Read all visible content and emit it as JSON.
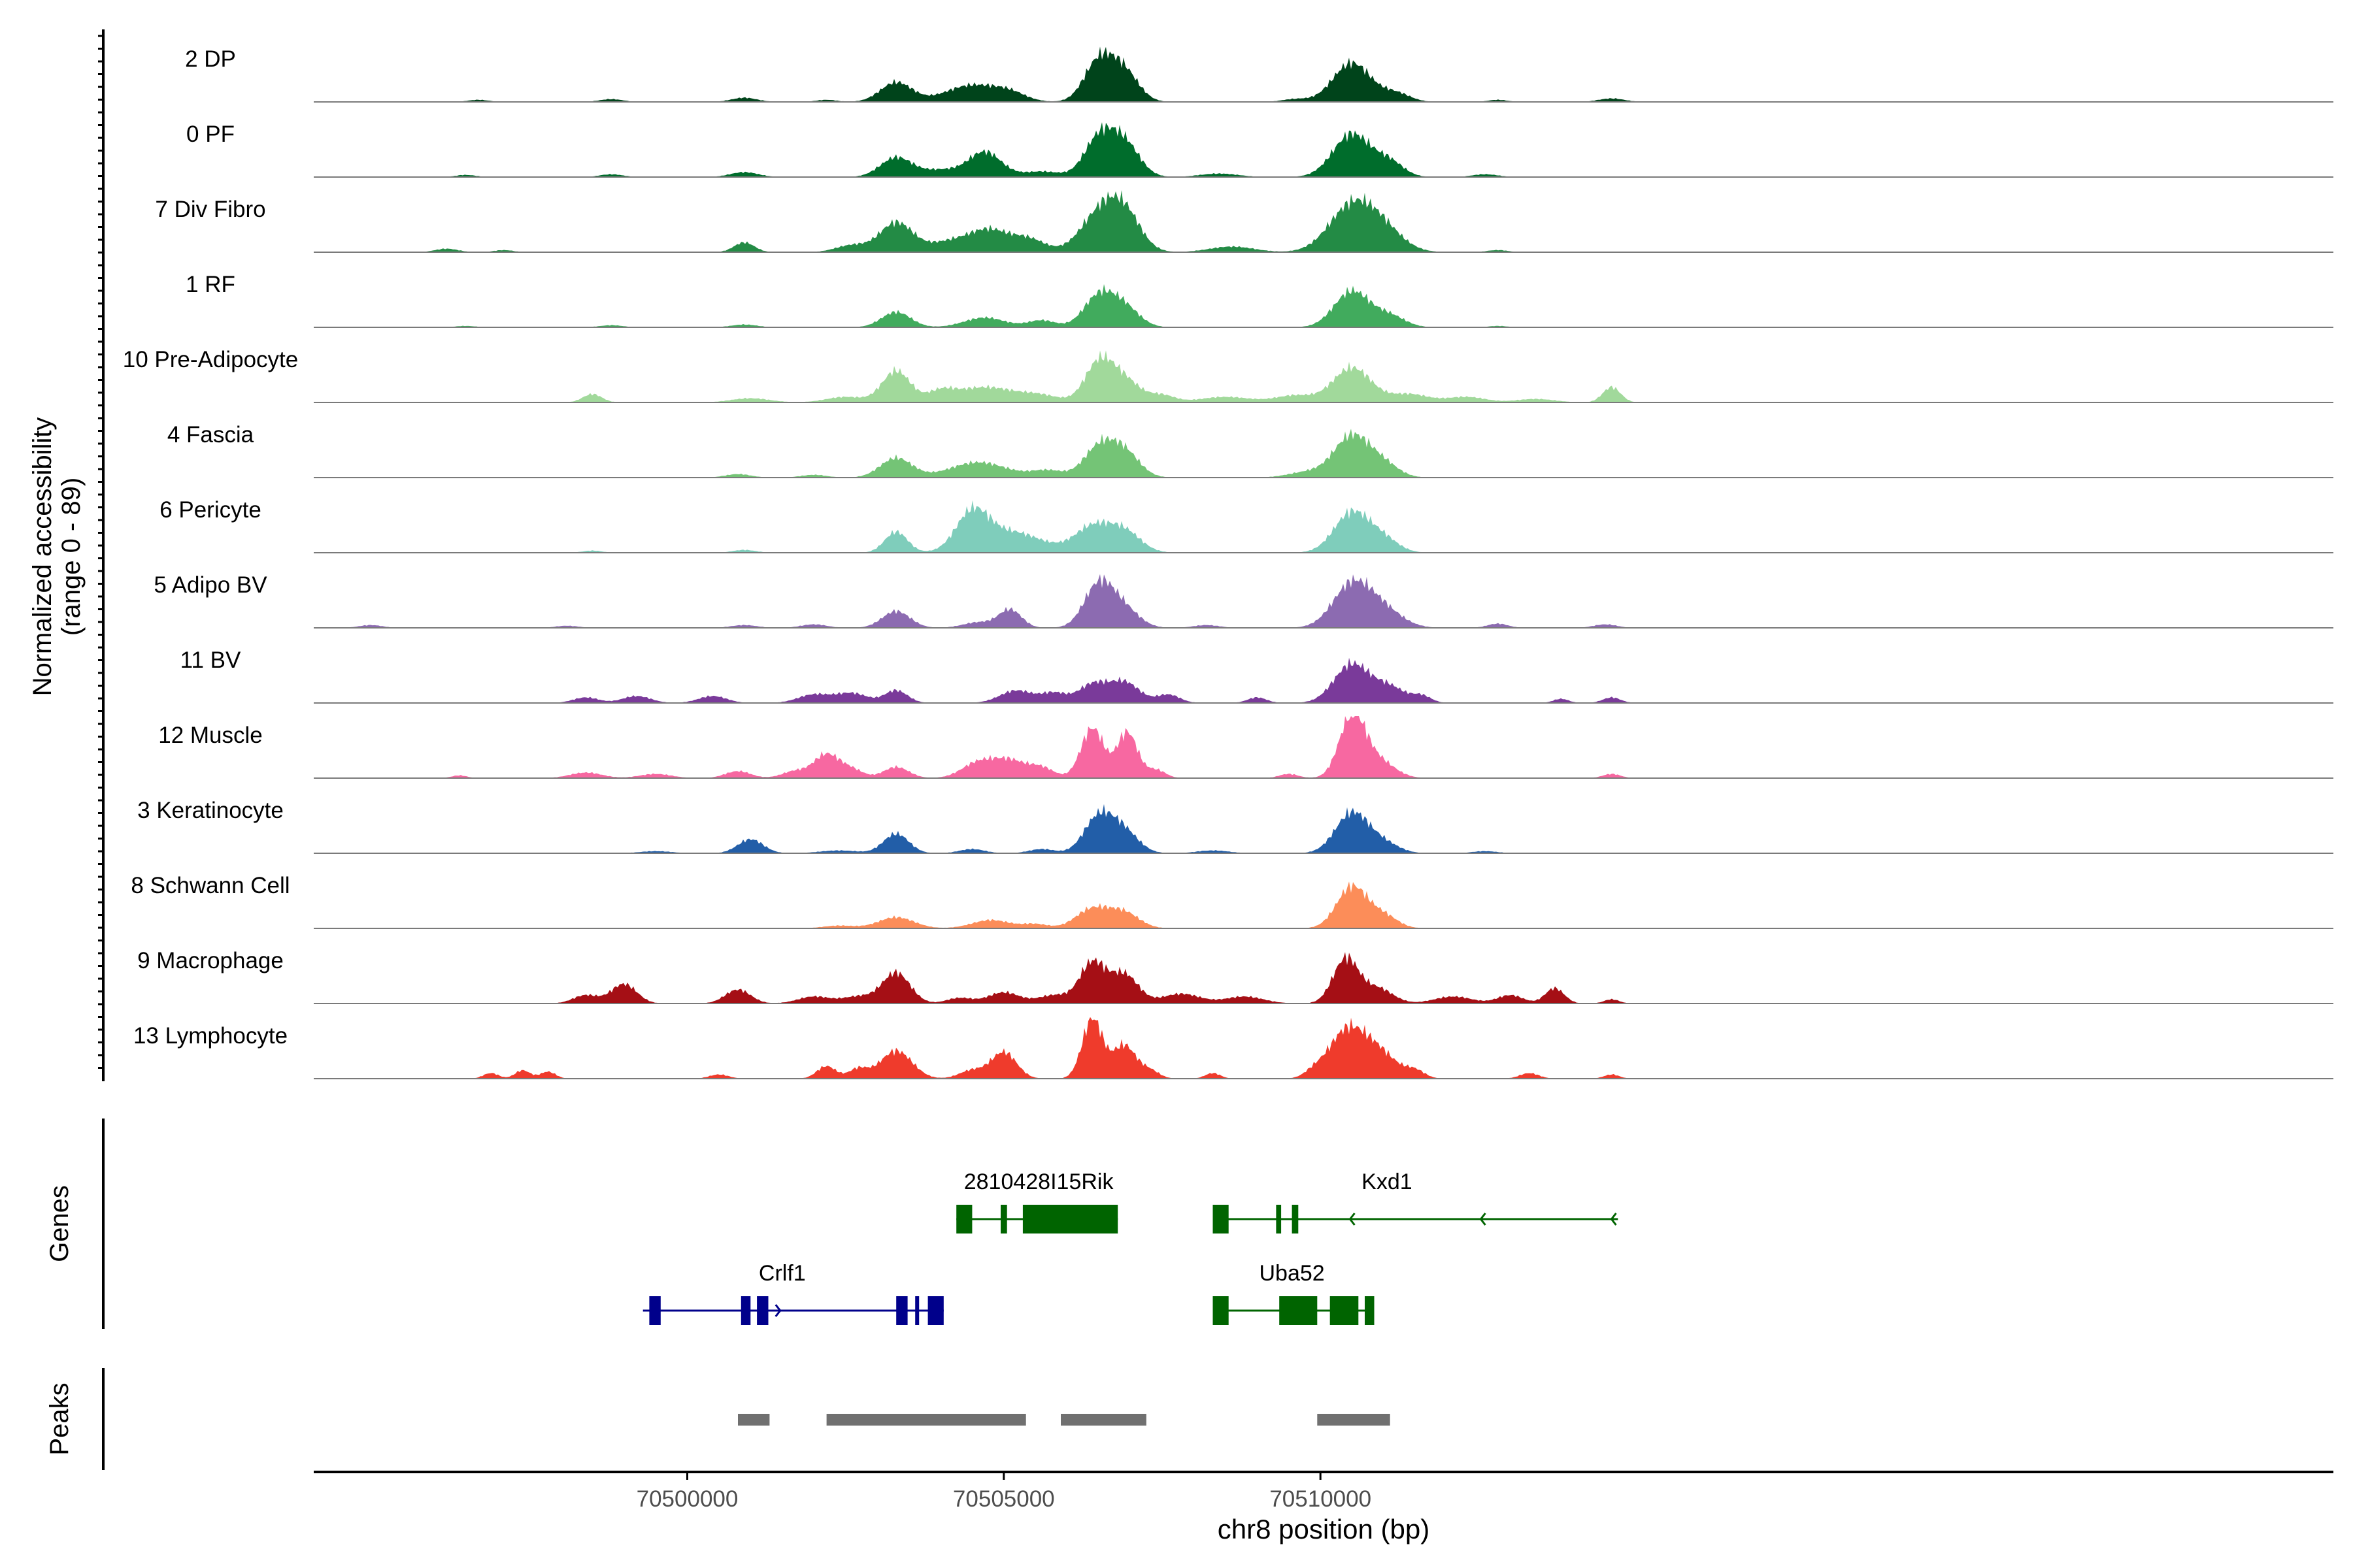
{
  "chart_data": {
    "type": "area",
    "title": "",
    "xlabel": "chr8 position (bp)",
    "ylabel": "Normalized accessibility\n(range 0 - 89)",
    "yaxis_range": [
      0,
      89
    ],
    "xlim": [
      70494100,
      70526000
    ],
    "x_ticks": [
      70500000,
      70505000,
      70510000
    ],
    "x_tick_labels": [
      "70500000",
      "70505000",
      "70510000"
    ],
    "track_labels": {
      "genes": "Genes",
      "peaks": "Peaks"
    },
    "series": [
      {
        "name": "2 DP",
        "color": "#00441b",
        "peaks": [
          [
            70496700,
            3,
            160
          ],
          [
            70498800,
            4,
            180
          ],
          [
            70500900,
            6,
            200
          ],
          [
            70502200,
            3,
            160
          ],
          [
            70503300,
            28,
            250
          ],
          [
            70504500,
            24,
            420
          ],
          [
            70505100,
            10,
            250
          ],
          [
            70506500,
            58,
            230
          ],
          [
            70506900,
            42,
            230
          ],
          [
            70509600,
            4,
            200
          ],
          [
            70510500,
            56,
            300
          ],
          [
            70511200,
            12,
            220
          ],
          [
            70512800,
            3,
            150
          ],
          [
            70514600,
            5,
            200
          ]
        ]
      },
      {
        "name": "0 PF",
        "color": "#006d2c",
        "peaks": [
          [
            70496500,
            3,
            160
          ],
          [
            70498800,
            4,
            180
          ],
          [
            70500900,
            7,
            220
          ],
          [
            70503300,
            28,
            250
          ],
          [
            70504000,
            10,
            300
          ],
          [
            70504700,
            36,
            260
          ],
          [
            70505600,
            8,
            300
          ],
          [
            70506500,
            54,
            230
          ],
          [
            70506900,
            48,
            240
          ],
          [
            70508400,
            5,
            300
          ],
          [
            70510500,
            62,
            300
          ],
          [
            70511100,
            20,
            220
          ],
          [
            70512600,
            4,
            200
          ]
        ]
      },
      {
        "name": "7 Div Fibro",
        "color": "#238b45",
        "peaks": [
          [
            70496200,
            5,
            180
          ],
          [
            70497100,
            3,
            150
          ],
          [
            70500900,
            14,
            160
          ],
          [
            70502600,
            10,
            250
          ],
          [
            70503300,
            42,
            260
          ],
          [
            70504200,
            16,
            380
          ],
          [
            70504800,
            28,
            300
          ],
          [
            70505400,
            18,
            260
          ],
          [
            70506500,
            52,
            300
          ],
          [
            70506900,
            52,
            260
          ],
          [
            70508600,
            8,
            350
          ],
          [
            70510500,
            66,
            360
          ],
          [
            70511000,
            26,
            320
          ],
          [
            70512800,
            3,
            160
          ]
        ]
      },
      {
        "name": "1 RF",
        "color": "#41ab5d",
        "peaks": [
          [
            70496500,
            2,
            160
          ],
          [
            70498800,
            3,
            180
          ],
          [
            70500900,
            4,
            200
          ],
          [
            70503300,
            22,
            230
          ],
          [
            70504700,
            14,
            320
          ],
          [
            70505600,
            10,
            220
          ],
          [
            70506500,
            44,
            240
          ],
          [
            70506900,
            28,
            240
          ],
          [
            70510500,
            52,
            280
          ],
          [
            70511100,
            16,
            240
          ],
          [
            70512800,
            2,
            150
          ]
        ]
      },
      {
        "name": "10 Pre-Adipocyte",
        "color": "#a1d99b",
        "peaks": [
          [
            70498500,
            12,
            150
          ],
          [
            70501000,
            6,
            300
          ],
          [
            70502500,
            8,
            300
          ],
          [
            70503300,
            45,
            220
          ],
          [
            70504000,
            12,
            200
          ],
          [
            70504700,
            22,
            500
          ],
          [
            70505600,
            8,
            300
          ],
          [
            70506500,
            55,
            220
          ],
          [
            70506900,
            32,
            250
          ],
          [
            70507500,
            10,
            200
          ],
          [
            70508500,
            8,
            400
          ],
          [
            70509600,
            10,
            300
          ],
          [
            70510500,
            50,
            300
          ],
          [
            70511400,
            12,
            300
          ],
          [
            70512300,
            8,
            300
          ],
          [
            70513400,
            5,
            300
          ],
          [
            70514600,
            22,
            140
          ]
        ]
      },
      {
        "name": "4 Fascia",
        "color": "#74c476",
        "peaks": [
          [
            70500800,
            5,
            200
          ],
          [
            70502000,
            4,
            200
          ],
          [
            70503300,
            28,
            250
          ],
          [
            70504600,
            22,
            450
          ],
          [
            70505700,
            10,
            260
          ],
          [
            70506500,
            42,
            240
          ],
          [
            70506900,
            36,
            240
          ],
          [
            70509800,
            8,
            300
          ],
          [
            70510500,
            60,
            280
          ],
          [
            70511000,
            18,
            240
          ]
        ]
      },
      {
        "name": "6 Pericyte",
        "color": "#7fcdbb",
        "peaks": [
          [
            70498500,
            3,
            150
          ],
          [
            70500900,
            4,
            180
          ],
          [
            70503300,
            30,
            180
          ],
          [
            70504500,
            50,
            250
          ],
          [
            70505100,
            30,
            500
          ],
          [
            70506400,
            36,
            280
          ],
          [
            70506900,
            30,
            260
          ],
          [
            70510500,
            58,
            280
          ],
          [
            70511000,
            18,
            240
          ]
        ]
      },
      {
        "name": "5 Adipo BV",
        "color": "#8c6bb1",
        "peaks": [
          [
            70495000,
            4,
            180
          ],
          [
            70498100,
            3,
            180
          ],
          [
            70500900,
            4,
            200
          ],
          [
            70502000,
            5,
            200
          ],
          [
            70503300,
            24,
            220
          ],
          [
            70504600,
            8,
            240
          ],
          [
            70505100,
            26,
            180
          ],
          [
            70506500,
            62,
            230
          ],
          [
            70506900,
            26,
            240
          ],
          [
            70508200,
            4,
            200
          ],
          [
            70510500,
            62,
            300
          ],
          [
            70511000,
            24,
            300
          ],
          [
            70512800,
            6,
            160
          ],
          [
            70514500,
            5,
            180
          ]
        ]
      },
      {
        "name": "11 BV",
        "color": "#7a3a9a",
        "peaks": [
          [
            70498400,
            8,
            200
          ],
          [
            70499200,
            10,
            220
          ],
          [
            70500400,
            10,
            220
          ],
          [
            70502000,
            12,
            250
          ],
          [
            70502600,
            14,
            250
          ],
          [
            70503300,
            18,
            180
          ],
          [
            70505200,
            18,
            260
          ],
          [
            70505800,
            14,
            200
          ],
          [
            70506400,
            26,
            220
          ],
          [
            70506900,
            30,
            240
          ],
          [
            70507600,
            12,
            180
          ],
          [
            70509000,
            8,
            150
          ],
          [
            70510500,
            56,
            280
          ],
          [
            70511100,
            22,
            240
          ],
          [
            70511600,
            10,
            150
          ],
          [
            70513800,
            6,
            120
          ],
          [
            70514600,
            8,
            140
          ]
        ]
      },
      {
        "name": "12 Muscle",
        "color": "#f768a1",
        "peaks": [
          [
            70496400,
            4,
            120
          ],
          [
            70498400,
            8,
            250
          ],
          [
            70499500,
            6,
            250
          ],
          [
            70500800,
            10,
            200
          ],
          [
            70501700,
            10,
            200
          ],
          [
            70502200,
            34,
            200
          ],
          [
            70502600,
            12,
            180
          ],
          [
            70503300,
            16,
            200
          ],
          [
            70504600,
            22,
            260
          ],
          [
            70505100,
            24,
            260
          ],
          [
            70505600,
            14,
            200
          ],
          [
            70506400,
            72,
            180
          ],
          [
            70506950,
            66,
            160
          ],
          [
            70507400,
            12,
            150
          ],
          [
            70509500,
            6,
            150
          ],
          [
            70510500,
            88,
            200
          ],
          [
            70510900,
            26,
            260
          ],
          [
            70514600,
            6,
            140
          ]
        ]
      },
      {
        "name": "3 Keratinocyte",
        "color": "#225ea8",
        "peaks": [
          [
            70499500,
            3,
            250
          ],
          [
            70501000,
            20,
            200
          ],
          [
            70502400,
            4,
            300
          ],
          [
            70503300,
            28,
            200
          ],
          [
            70504500,
            6,
            200
          ],
          [
            70505600,
            6,
            200
          ],
          [
            70506500,
            52,
            230
          ],
          [
            70506900,
            30,
            230
          ],
          [
            70508300,
            4,
            250
          ],
          [
            70510500,
            58,
            260
          ],
          [
            70511000,
            14,
            240
          ],
          [
            70512600,
            3,
            200
          ]
        ]
      },
      {
        "name": "8 Schwann Cell",
        "color": "#fc8d59",
        "peaks": [
          [
            70502400,
            4,
            250
          ],
          [
            70503300,
            16,
            280
          ],
          [
            70504800,
            12,
            300
          ],
          [
            70505500,
            6,
            200
          ],
          [
            70506400,
            28,
            260
          ],
          [
            70506900,
            22,
            240
          ],
          [
            70510500,
            60,
            240
          ],
          [
            70511000,
            18,
            220
          ]
        ]
      },
      {
        "name": "9 Macrophage",
        "color": "#a50f15",
        "peaks": [
          [
            70498400,
            12,
            200
          ],
          [
            70499000,
            28,
            200
          ],
          [
            70500800,
            20,
            200
          ],
          [
            70502000,
            10,
            250
          ],
          [
            70502700,
            10,
            250
          ],
          [
            70503300,
            44,
            220
          ],
          [
            70504300,
            8,
            200
          ],
          [
            70505000,
            16,
            250
          ],
          [
            70505800,
            12,
            250
          ],
          [
            70506400,
            58,
            200
          ],
          [
            70506900,
            42,
            220
          ],
          [
            70507800,
            14,
            300
          ],
          [
            70508800,
            10,
            300
          ],
          [
            70510400,
            64,
            200
          ],
          [
            70510900,
            22,
            240
          ],
          [
            70512100,
            10,
            300
          ],
          [
            70513000,
            12,
            200
          ],
          [
            70513700,
            22,
            150
          ],
          [
            70514600,
            6,
            120
          ]
        ]
      },
      {
        "name": "13 Lymphocyte",
        "color": "#ef3b2c",
        "peaks": [
          [
            70496900,
            8,
            120
          ],
          [
            70497400,
            12,
            120
          ],
          [
            70497800,
            10,
            120
          ],
          [
            70500500,
            6,
            150
          ],
          [
            70502200,
            18,
            150
          ],
          [
            70502700,
            14,
            150
          ],
          [
            70503300,
            40,
            250
          ],
          [
            70504500,
            12,
            200
          ],
          [
            70505000,
            38,
            200
          ],
          [
            70506400,
            86,
            160
          ],
          [
            70506900,
            48,
            180
          ],
          [
            70507300,
            12,
            150
          ],
          [
            70508300,
            8,
            120
          ],
          [
            70509900,
            8,
            150
          ],
          [
            70510400,
            64,
            280
          ],
          [
            70510900,
            38,
            300
          ],
          [
            70511500,
            10,
            150
          ],
          [
            70513300,
            8,
            150
          ],
          [
            70514600,
            6,
            120
          ]
        ]
      }
    ],
    "genes": [
      {
        "name": "2810428I15Rik",
        "color": "#006400",
        "strand": "",
        "row": 1,
        "start": 70504250,
        "end": 70506800,
        "label_pos": 70505550,
        "exons": [
          [
            70504250,
            70504500
          ],
          [
            70504950,
            70505050
          ],
          [
            70505300,
            70506800
          ]
        ]
      },
      {
        "name": "Kxd1",
        "color": "#006400",
        "strand": "-",
        "row": 1,
        "start": 70508300,
        "end": 70514700,
        "label_pos": 70511050,
        "exons": [
          [
            70508300,
            70508550
          ],
          [
            70509300,
            70509380
          ],
          [
            70509550,
            70509650
          ]
        ]
      },
      {
        "name": "Crlf1",
        "color": "#00008b",
        "strand": "+",
        "row": 2,
        "start": 70499300,
        "end": 70504050,
        "label_pos": 70501500,
        "exons": [
          [
            70499400,
            70499580
          ],
          [
            70500850,
            70501000
          ],
          [
            70501100,
            70501280
          ],
          [
            70503300,
            70503480
          ],
          [
            70503600,
            70503660
          ],
          [
            70503800,
            70504050
          ]
        ]
      },
      {
        "name": "Uba52",
        "color": "#006400",
        "strand": "-",
        "row": 2,
        "start": 70508300,
        "end": 70510850,
        "label_pos": 70509550,
        "exons": [
          [
            70508300,
            70508550
          ],
          [
            70509350,
            70509950
          ],
          [
            70510150,
            70510600
          ],
          [
            70510700,
            70510850
          ]
        ]
      }
    ],
    "peaks_track": [
      [
        70500800,
        70501300
      ],
      [
        70502200,
        70505350
      ],
      [
        70505900,
        70507250
      ],
      [
        70509950,
        70511100
      ]
    ]
  }
}
